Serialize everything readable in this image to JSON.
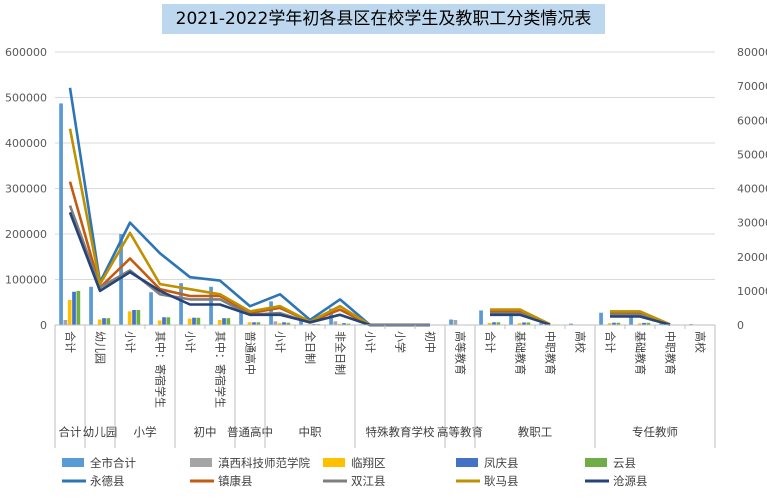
{
  "chart_data": {
    "type": "bar",
    "title": "2021-2022学年初各县区在校学生及教职工分类情况表",
    "categories": [
      "合计",
      "幼儿园",
      "小计",
      "其中：寄宿学生",
      "小计",
      "其中：寄宿学生",
      "普通高中",
      "小计",
      "全日制",
      "非全日制",
      "小计",
      "小学",
      "初中",
      "高等教育",
      "合计",
      "基础教育",
      "中职教育",
      "高校",
      "合计",
      "基础教育",
      "中职教育",
      "高校"
    ],
    "group_labels": [
      "合计",
      "幼儿园",
      "小学",
      "初中",
      "普通高中",
      "中职",
      "特殊教育学校",
      "高等教育",
      "教职工",
      "专任教师"
    ],
    "y_left": {
      "ticks": [
        "0",
        "100000",
        "200000",
        "300000",
        "400000",
        "500000",
        "600000"
      ],
      "ylim": [
        0,
        600000
      ]
    },
    "y_right": {
      "ticks": [
        "0",
        "10000",
        "20000",
        "30000",
        "40000",
        "50000",
        "60000",
        "70000",
        "80000"
      ],
      "ylim": [
        0,
        80000
      ]
    },
    "bar_series": [
      {
        "name": "全市合计",
        "color": "#5b9bd5",
        "values": [
          487000,
          84000,
          200000,
          72000,
          92000,
          84000,
          35000,
          52000,
          14000,
          36000,
          1500,
          800,
          700,
          12000,
          32000,
          30000,
          4000,
          3000,
          27000,
          25000,
          3000,
          2000
        ]
      },
      {
        "name": "滇西科技师范学院",
        "color": "#a5a5a5",
        "values": [
          11000,
          0,
          0,
          0,
          0,
          0,
          0,
          8000,
          0,
          8000,
          0,
          0,
          0,
          11000,
          1000,
          0,
          0,
          1000,
          700,
          0,
          0,
          700
        ]
      },
      {
        "name": "临翔区",
        "color": "#ffc000",
        "values": [
          55000,
          12000,
          30000,
          10000,
          14000,
          11000,
          6000,
          4000,
          1500,
          2500,
          200,
          100,
          100,
          0,
          4500,
          4000,
          300,
          0,
          4000,
          3600,
          300,
          0
        ]
      },
      {
        "name": "凤庆县",
        "color": "#4472c4",
        "values": [
          73000,
          15000,
          33000,
          17000,
          16000,
          15000,
          6000,
          6000,
          2000,
          4000,
          300,
          200,
          100,
          0,
          6000,
          5600,
          400,
          0,
          5000,
          4700,
          300,
          0
        ]
      },
      {
        "name": "云县",
        "color": "#70ad47",
        "values": [
          75000,
          15000,
          33000,
          17000,
          16000,
          15000,
          6000,
          5000,
          2000,
          3000,
          300,
          200,
          100,
          0,
          6000,
          5600,
          400,
          0,
          5000,
          4700,
          300,
          0
        ]
      }
    ],
    "line_series": [
      {
        "name": "永德县",
        "color": "#2e75b6",
        "values": [
          69500,
          12500,
          30000,
          21000,
          14000,
          13000,
          5500,
          9000,
          1500,
          7500,
          0,
          0,
          0,
          null,
          4300,
          4300,
          200,
          null,
          3900,
          3900,
          150,
          null
        ]
      },
      {
        "name": "镇康县",
        "color": "#c55a11",
        "values": [
          42000,
          11000,
          19500,
          10500,
          8500,
          8500,
          3500,
          5000,
          1000,
          4500,
          0,
          0,
          0,
          null,
          3800,
          3800,
          150,
          null,
          3200,
          3200,
          100,
          null
        ]
      },
      {
        "name": "双江县",
        "color": "#7f7f7f",
        "values": [
          35000,
          11000,
          16000,
          9000,
          7500,
          7500,
          3000,
          3500,
          700,
          3000,
          0,
          0,
          0,
          null,
          3400,
          3400,
          150,
          null,
          3000,
          3000,
          100,
          null
        ]
      },
      {
        "name": "耿马县",
        "color": "#bf9000",
        "values": [
          57500,
          12000,
          27000,
          12000,
          10500,
          9000,
          4000,
          5500,
          1000,
          5500,
          0,
          0,
          0,
          null,
          4500,
          4500,
          200,
          null,
          4000,
          4000,
          150,
          null
        ]
      },
      {
        "name": "沧源县",
        "color": "#264478",
        "values": [
          33000,
          10000,
          15500,
          10000,
          6000,
          6000,
          3000,
          3000,
          800,
          3000,
          0,
          0,
          0,
          null,
          3000,
          3000,
          100,
          null,
          2500,
          2500,
          100,
          null
        ]
      }
    ],
    "grid": true,
    "legend_position": "bottom"
  }
}
